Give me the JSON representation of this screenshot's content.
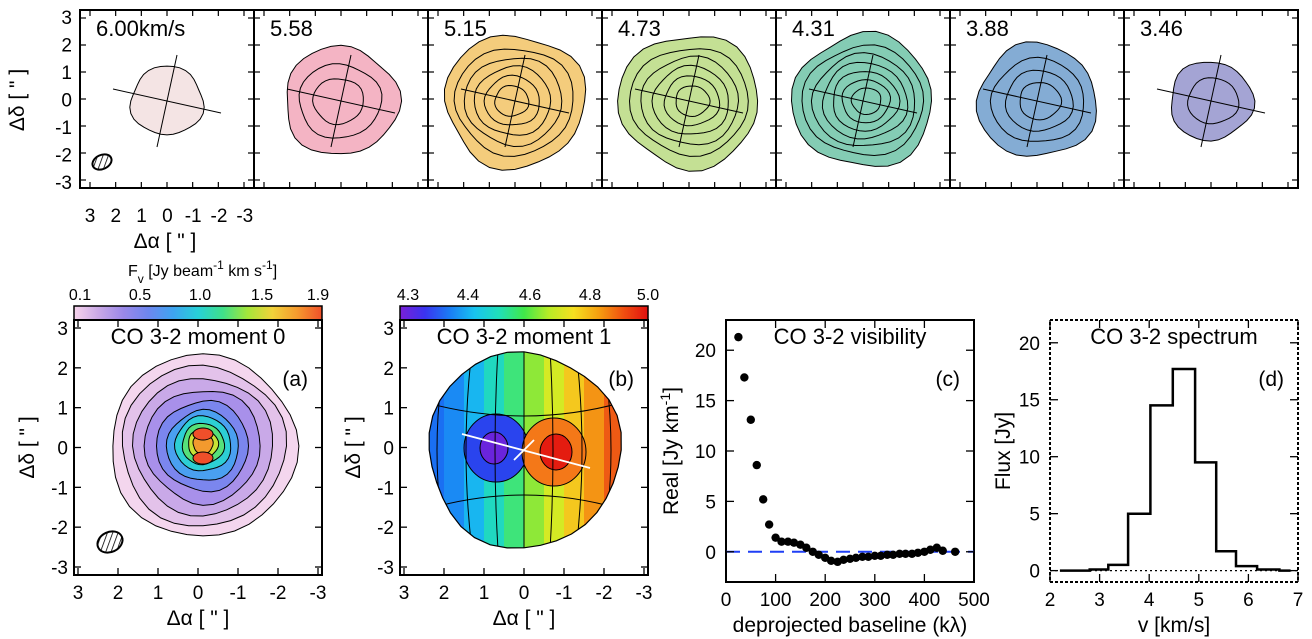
{
  "figure": {
    "channels_axes": {
      "xlabel": "Δα [ \" ]",
      "ylabel": "Δδ [ \" ]",
      "xticks": [
        "3",
        "2",
        "1",
        "0",
        "-1",
        "-2",
        "-3"
      ],
      "yticks": [
        "3",
        "2",
        "1",
        "0",
        "-1",
        "-2",
        "-3"
      ]
    },
    "moment0": {
      "title": "CO 3-2 moment 0",
      "panel_label": "(a)",
      "colorbar_label": "F_v [Jy beam^-1 km s^-1]",
      "colorbar_label_parts": [
        "F",
        "v",
        " [Jy beam",
        "-1",
        " km s",
        "-1",
        "]"
      ],
      "colorbar_ticks": [
        "0.1",
        "0.5",
        "1.0",
        "1.5",
        "1.9"
      ],
      "xlabel": "Δα [ \" ]",
      "ylabel": "Δδ [ \" ]",
      "xticks": [
        "3",
        "2",
        "1",
        "0",
        "-1",
        "-2",
        "-3"
      ],
      "yticks": [
        "3",
        "2",
        "1",
        "0",
        "-1",
        "-2",
        "-3"
      ]
    },
    "moment1": {
      "title": "CO 3-2 moment 1",
      "panel_label": "(b)",
      "colorbar_ticks": [
        "4.3",
        "4.4",
        "4.6",
        "4.8",
        "5.0"
      ],
      "xlabel": "Δα [ \" ]",
      "ylabel": "Δδ [ \" ]",
      "xticks": [
        "3",
        "2",
        "1",
        "0",
        "-1",
        "-2",
        "-3"
      ],
      "yticks": [
        "3",
        "2",
        "1",
        "0",
        "-1",
        "-2",
        "-3"
      ]
    },
    "visibility": {
      "title": "CO 3-2 visibility",
      "panel_label": "(c)",
      "xlabel": "deprojected baseline (kλ)",
      "ylabel": "Real [Jy km",
      "ylabel_sup": "-1",
      "ylabel_end": "]",
      "xticks": [
        "0",
        "100",
        "200",
        "300",
        "400",
        "500"
      ],
      "yticks": [
        "0",
        "5",
        "10",
        "15",
        "20"
      ]
    },
    "spectrum": {
      "title": "CO 3-2 spectrum",
      "panel_label": "(d)",
      "xlabel": "v [km/s]",
      "ylabel": "Flux [Jy]",
      "xticks": [
        "2",
        "3",
        "4",
        "5",
        "6",
        "7"
      ],
      "yticks": [
        "0",
        "5",
        "10",
        "15",
        "20"
      ]
    }
  },
  "colors": {
    "moment0_cmap": [
      "#f7d4ec",
      "#c9a8e6",
      "#9a88e8",
      "#6d86ef",
      "#3ea4f0",
      "#27d0d8",
      "#3fe08a",
      "#a4e63a",
      "#f2d23a",
      "#f59a2e",
      "#f0502a"
    ],
    "moment1_cmap": [
      "#7a1fd8",
      "#3a33f0",
      "#1a7cf4",
      "#18c4f0",
      "#20e0b8",
      "#40e84a",
      "#b8ec26",
      "#f6e020",
      "#f6a010",
      "#f05010",
      "#e01010"
    ],
    "channel_fills": [
      "#f4e4e4",
      "#f4b4c4",
      "#f4cc7c",
      "#c4e094",
      "#84ccb4",
      "#84acd4",
      "#a4a4d4"
    ],
    "baseline_dash": "#1f3ff5"
  },
  "chart_data": [
    {
      "type": "heatmap",
      "name": "channel maps",
      "channels": [
        {
          "label": "6.00km/s",
          "v": 6.0,
          "peak": 0.35,
          "n_contours": 1
        },
        {
          "label": "5.58",
          "v": 5.58,
          "peak": 0.75,
          "n_contours": 3
        },
        {
          "label": "5.15",
          "v": 5.15,
          "peak": 1.0,
          "n_contours": 6
        },
        {
          "label": "4.73",
          "v": 4.73,
          "peak": 1.0,
          "n_contours": 6
        },
        {
          "label": "4.31",
          "v": 4.31,
          "peak": 1.0,
          "n_contours": 7
        },
        {
          "label": "3.88",
          "v": 3.88,
          "peak": 0.8,
          "n_contours": 4
        },
        {
          "label": "3.46",
          "v": 3.46,
          "peak": 0.45,
          "n_contours": 2
        }
      ],
      "xlim": [
        3,
        -3
      ],
      "ylim": [
        -3,
        3
      ]
    },
    {
      "type": "heatmap",
      "name": "moment 0",
      "colorbar_range": [
        0.1,
        1.9
      ],
      "n_contours": 9,
      "xlim": [
        3,
        -3
      ],
      "ylim": [
        -3,
        3
      ]
    },
    {
      "type": "heatmap",
      "name": "moment 1",
      "colorbar_range": [
        4.3,
        5.0
      ],
      "xlim": [
        3,
        -3
      ],
      "ylim": [
        -3,
        3
      ]
    },
    {
      "type": "scatter",
      "name": "visibility",
      "x": [
        25,
        37,
        50,
        62,
        75,
        87,
        100,
        112,
        125,
        137,
        150,
        162,
        175,
        187,
        200,
        212,
        225,
        237,
        250,
        262,
        275,
        287,
        300,
        312,
        325,
        337,
        350,
        362,
        375,
        387,
        400,
        412,
        425,
        437,
        462
      ],
      "y": [
        21.3,
        17.3,
        13.1,
        8.6,
        5.2,
        2.7,
        1.4,
        1.0,
        1.0,
        0.9,
        0.7,
        0.4,
        0.0,
        -0.3,
        -0.6,
        -0.9,
        -1.0,
        -0.8,
        -0.7,
        -0.6,
        -0.5,
        -0.5,
        -0.4,
        -0.4,
        -0.3,
        -0.3,
        -0.2,
        -0.2,
        -0.2,
        -0.1,
        0.0,
        0.2,
        0.4,
        0.1,
        0.0
      ],
      "reference_line": 0,
      "xlim": [
        0,
        500
      ],
      "ylim": [
        -3,
        23
      ]
    },
    {
      "type": "line",
      "name": "spectrum",
      "step": true,
      "x": [
        2.2,
        2.6,
        3.0,
        3.35,
        3.8,
        4.25,
        4.7,
        5.15,
        5.55,
        5.95,
        6.4,
        6.85
      ],
      "y": [
        0,
        0,
        0.1,
        0.5,
        5.0,
        14.5,
        17.7,
        9.5,
        1.7,
        0.4,
        0.1,
        0
      ],
      "xlim": [
        2,
        7
      ],
      "ylim": [
        -1,
        22
      ]
    }
  ]
}
